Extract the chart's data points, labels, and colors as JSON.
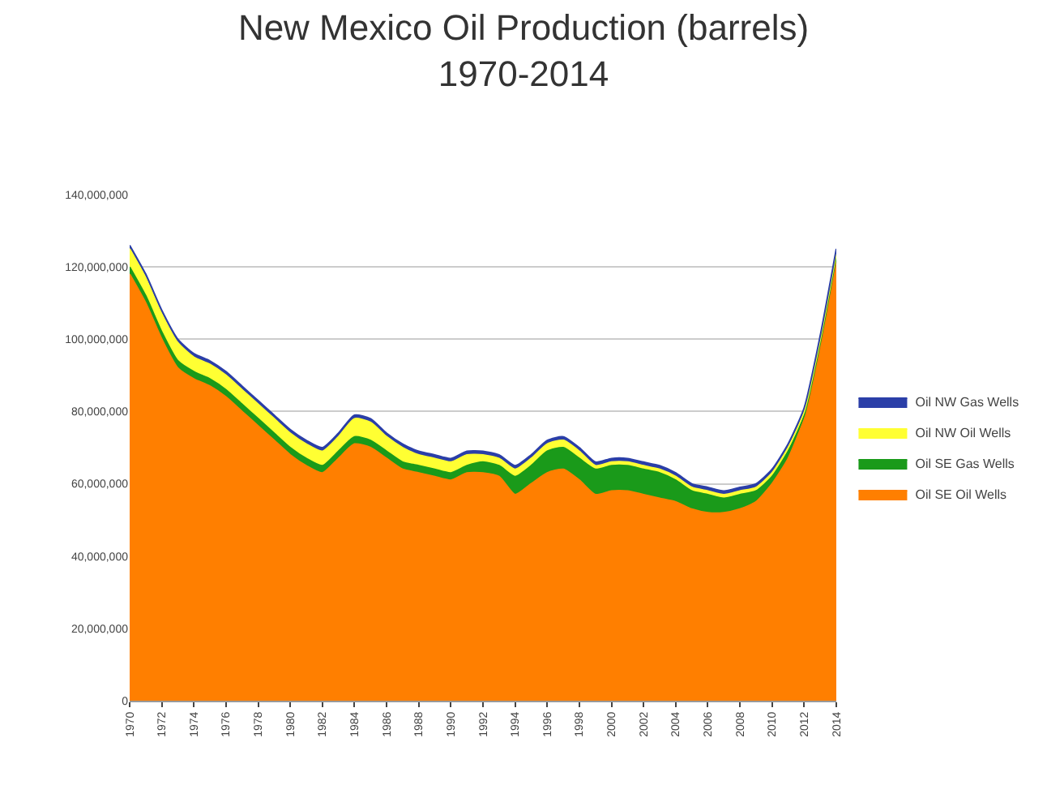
{
  "chart_data": {
    "type": "area",
    "title": "New Mexico Oil Production (barrels)\n1970-2014",
    "stacked": true,
    "x": [
      1970,
      1971,
      1972,
      1973,
      1974,
      1975,
      1976,
      1977,
      1978,
      1979,
      1980,
      1981,
      1982,
      1983,
      1984,
      1985,
      1986,
      1987,
      1988,
      1989,
      1990,
      1991,
      1992,
      1993,
      1994,
      1995,
      1996,
      1997,
      1998,
      1999,
      2000,
      2001,
      2002,
      2003,
      2004,
      2005,
      2006,
      2007,
      2008,
      2009,
      2010,
      2011,
      2012,
      2013,
      2014
    ],
    "series": [
      {
        "name": "Oil SE Oil Wells",
        "color": "#ff7f00",
        "values": [
          118000000,
          110000000,
          100000000,
          92000000,
          89000000,
          87000000,
          84000000,
          80000000,
          76000000,
          72000000,
          68000000,
          65000000,
          63000000,
          67000000,
          71000000,
          70000000,
          67000000,
          64000000,
          63000000,
          62000000,
          61000000,
          63000000,
          63000000,
          62000000,
          57000000,
          60000000,
          63000000,
          64000000,
          61000000,
          57000000,
          58000000,
          58000000,
          57000000,
          56000000,
          55000000,
          53000000,
          52000000,
          52000000,
          53000000,
          55000000,
          60000000,
          67000000,
          78000000,
          98000000,
          122000000
        ]
      },
      {
        "name": "Oil SE Gas Wells",
        "color": "#1a9a1a",
        "values": [
          2000000,
          2000000,
          2000000,
          2000000,
          2000000,
          2000000,
          2000000,
          2000000,
          2000000,
          2000000,
          2000000,
          2000000,
          2000000,
          2000000,
          2000000,
          2000000,
          2000000,
          2000000,
          2000000,
          2000000,
          2000000,
          2000000,
          3000000,
          3000000,
          5000000,
          5000000,
          6000000,
          6000000,
          6000000,
          7000000,
          7000000,
          7000000,
          7000000,
          7000000,
          6000000,
          5000000,
          5000000,
          4000000,
          4000000,
          3000000,
          2000000,
          2000000,
          1000000,
          1000000,
          1000000
        ]
      },
      {
        "name": "Oil NW Oil Wells",
        "color": "#ffff33",
        "values": [
          5000000,
          5000000,
          5000000,
          5000000,
          4000000,
          4000000,
          4000000,
          4000000,
          4000000,
          4000000,
          4000000,
          4000000,
          4000000,
          4000000,
          5000000,
          5000000,
          4000000,
          4000000,
          3000000,
          3000000,
          3000000,
          3000000,
          2000000,
          2000000,
          2000000,
          2000000,
          2000000,
          2000000,
          2000000,
          1000000,
          1000000,
          1000000,
          1000000,
          1000000,
          1000000,
          1000000,
          1000000,
          1000000,
          1000000,
          1000000,
          1000000,
          1000000,
          1000000,
          1000000,
          1000000
        ]
      },
      {
        "name": "Oil NW Gas Wells",
        "color": "#2b3fa8",
        "values": [
          1000000,
          1000000,
          1000000,
          1000000,
          1000000,
          1000000,
          1000000,
          1000000,
          1000000,
          1000000,
          1000000,
          1000000,
          1000000,
          1000000,
          1000000,
          1000000,
          1000000,
          1000000,
          1000000,
          1000000,
          1000000,
          1000000,
          1000000,
          1000000,
          1000000,
          1000000,
          1000000,
          1000000,
          1000000,
          1000000,
          1000000,
          1000000,
          1000000,
          1000000,
          1000000,
          1000000,
          1000000,
          1000000,
          1000000,
          1000000,
          1000000,
          1000000,
          1000000,
          1000000,
          1000000
        ]
      }
    ],
    "xlim": [
      1970,
      2014
    ],
    "xticks": [
      1970,
      1972,
      1974,
      1976,
      1978,
      1980,
      1982,
      1984,
      1986,
      1988,
      1990,
      1992,
      1994,
      1996,
      1998,
      2000,
      2002,
      2004,
      2006,
      2008,
      2010,
      2012,
      2014
    ],
    "ylim": [
      0,
      140000000
    ],
    "yticks": [
      {
        "value": 0,
        "label": "0"
      },
      {
        "value": 20000000,
        "label": "20,000,000"
      },
      {
        "value": 40000000,
        "label": "40,000,000"
      },
      {
        "value": 60000000,
        "label": "60,000,000"
      },
      {
        "value": 80000000,
        "label": "80,000,000"
      },
      {
        "value": 100000000,
        "label": "100,000,000"
      },
      {
        "value": 120000000,
        "label": "120,000,000"
      },
      {
        "value": 140000000,
        "label": "140,000,000"
      }
    ],
    "grid": "y",
    "legend": "right"
  }
}
